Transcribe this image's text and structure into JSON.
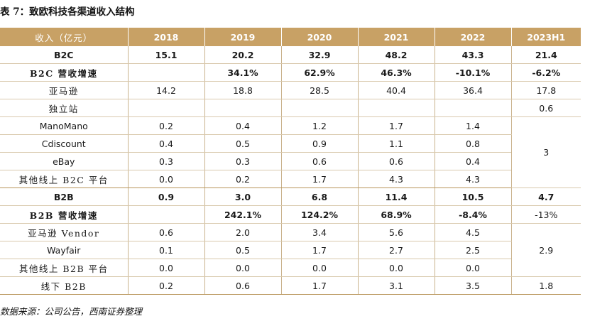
{
  "title": "表 7：致欧科技各渠道收入结构",
  "header": [
    "收入（亿元）",
    "2018",
    "2019",
    "2020",
    "2021",
    "2022",
    "2023H1"
  ],
  "rows": [
    {
      "label": "B2C",
      "cells": [
        "15.1",
        "20.2",
        "32.9",
        "48.2",
        "43.3",
        "21.4"
      ]
    },
    {
      "label": "B2C 营收增速",
      "cells": [
        "",
        "34.1%",
        "62.9%",
        "46.3%",
        "-10.1%",
        "-6.2%"
      ]
    },
    {
      "label": "亚马逊",
      "cells": [
        "14.2",
        "18.8",
        "28.5",
        "40.4",
        "36.4",
        "17.8"
      ]
    },
    {
      "label": "独立站",
      "cells": [
        "",
        "",
        "",
        "",
        "",
        "0.6"
      ]
    },
    {
      "label": "ManoMano",
      "cells": [
        "0.2",
        "0.4",
        "1.2",
        "1.7",
        "1.4"
      ]
    },
    {
      "label": "Cdiscount",
      "cells": [
        "0.4",
        "0.5",
        "0.9",
        "1.1",
        "0.8"
      ]
    },
    {
      "label": "eBay",
      "cells": [
        "0.3",
        "0.3",
        "0.6",
        "0.6",
        "0.4"
      ]
    },
    {
      "label": "其他线上 B2C 平台",
      "cells": [
        "0.0",
        "0.2",
        "1.7",
        "4.3",
        "4.3"
      ]
    },
    {
      "label": "B2B",
      "cells": [
        "0.9",
        "3.0",
        "6.8",
        "11.4",
        "10.5",
        "4.7"
      ]
    },
    {
      "label": "B2B 营收增速",
      "cells": [
        "",
        "242.1%",
        "124.2%",
        "68.9%",
        "-8.4%",
        "-13%"
      ]
    },
    {
      "label": "亚马逊 Vendor",
      "cells": [
        "0.6",
        "2.0",
        "3.4",
        "5.6",
        "4.5"
      ]
    },
    {
      "label": "Wayfair",
      "cells": [
        "0.1",
        "0.5",
        "1.7",
        "2.7",
        "2.5"
      ]
    },
    {
      "label": "其他线上 B2B 平台",
      "cells": [
        "0.0",
        "0.0",
        "0.0",
        "0.0",
        "0.0"
      ]
    },
    {
      "label": "线下 B2B",
      "cells": [
        "0.2",
        "0.6",
        "1.7",
        "3.1",
        "3.5",
        "1.8"
      ]
    }
  ],
  "merged": {
    "b2c_others_2023h1": "3",
    "b2b_others_2023h1": "2.9"
  },
  "source": "数据来源：公司公告，西南证券整理"
}
